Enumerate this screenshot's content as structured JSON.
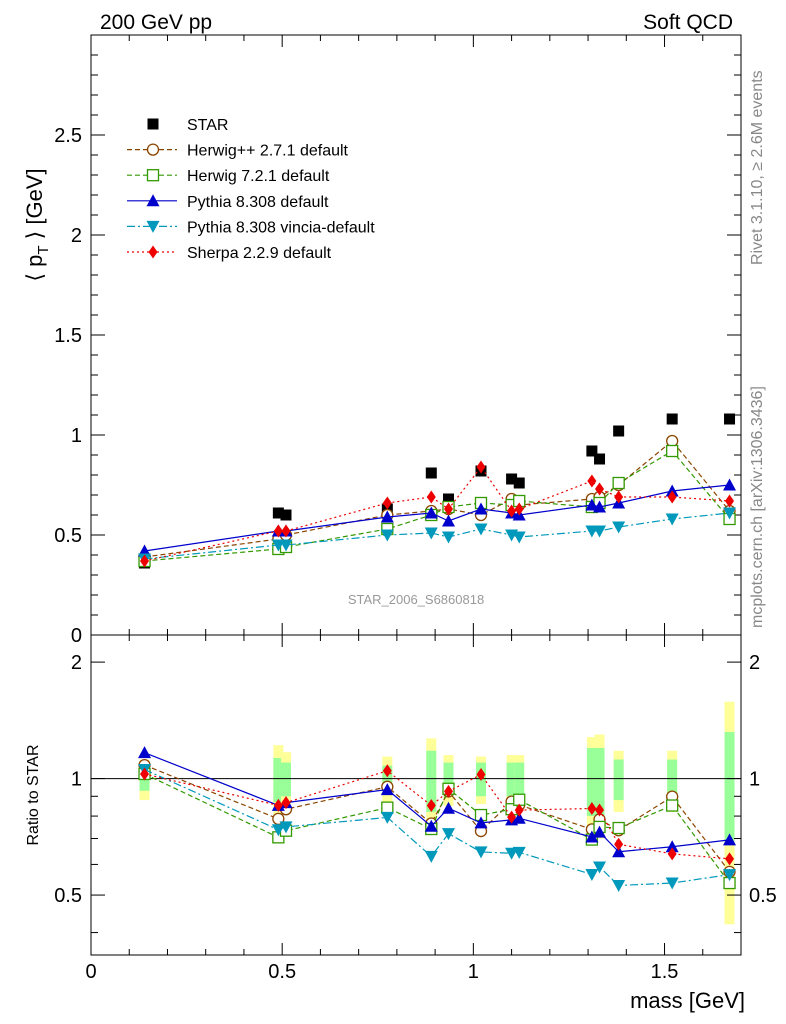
{
  "header": {
    "left_label": "200 GeV pp",
    "right_label": "Soft QCD",
    "side_top": "Rivet 3.1.10, ≥ 2.6M events",
    "side_bottom": "mcplots.cern.ch [arXiv:1306.3436]",
    "watermark": "STAR_2006_S6860818"
  },
  "chart_data": {
    "type": "line",
    "xlabel": "mass [GeV]",
    "ylabel": "⟨ p_T ⟩ [GeV]",
    "ratio_ylabel": "Ratio to STAR",
    "xlim": [
      0,
      1.7
    ],
    "ylim": [
      0,
      3.0
    ],
    "ratio_ylim": [
      0.35,
      2.35
    ],
    "x_ticks": [
      "0",
      "0.5",
      "1",
      "1.5"
    ],
    "x_tick_values": [
      0,
      0.5,
      1,
      1.5
    ],
    "y_ticks": [
      "0",
      "0.5",
      "1",
      "1.5",
      "2",
      "2.5"
    ],
    "y_tick_values": [
      0,
      0.5,
      1,
      1.5,
      2,
      2.5
    ],
    "ratio_ticks": [
      "0.5",
      "1",
      "2"
    ],
    "ratio_tick_values": [
      0.5,
      1,
      2
    ],
    "legend_position": "top-left",
    "data_points": {
      "x": [
        0.14,
        0.49,
        0.51,
        0.775,
        0.89,
        0.935,
        1.02,
        1.1,
        1.12,
        1.31,
        1.33,
        1.38,
        1.52,
        1.67
      ],
      "y": [
        0.36,
        0.61,
        0.6,
        0.63,
        0.81,
        0.68,
        0.82,
        0.78,
        0.76,
        0.92,
        0.88,
        1.02,
        1.08,
        1.08
      ],
      "ratio_band_inner": [
        0.07,
        0.13,
        0.1,
        0.08,
        0.18,
        0.1,
        0.1,
        0.1,
        0.1,
        0.2,
        0.2,
        0.12,
        0.12,
        0.32
      ],
      "ratio_band_outer": [
        0.12,
        0.22,
        0.17,
        0.14,
        0.27,
        0.15,
        0.14,
        0.15,
        0.15,
        0.28,
        0.3,
        0.18,
        0.18,
        0.58
      ]
    },
    "series": [
      {
        "name": "STAR",
        "color": "#000000",
        "marker": "square",
        "line": "none",
        "y": [
          0.36,
          0.61,
          0.6,
          0.63,
          0.81,
          0.68,
          0.82,
          0.78,
          0.76,
          0.92,
          0.88,
          1.02,
          1.08,
          1.08
        ]
      },
      {
        "name": "Herwig++ 2.7.1 default",
        "color": "#8b4500",
        "marker": "circle-open",
        "line": "dashed",
        "y": [
          0.39,
          0.48,
          0.5,
          0.6,
          0.62,
          0.63,
          0.6,
          0.68,
          0.65,
          0.68,
          0.69,
          0.75,
          0.97,
          0.62
        ]
      },
      {
        "name": "Herwig 7.2.1 default",
        "color": "#339900",
        "marker": "square-open",
        "line": "dashed",
        "y": [
          0.37,
          0.43,
          0.44,
          0.53,
          0.6,
          0.64,
          0.66,
          0.65,
          0.67,
          0.64,
          0.66,
          0.76,
          0.92,
          0.58
        ]
      },
      {
        "name": "Pythia 8.308 default",
        "color": "#0000cc",
        "marker": "triangle-up",
        "line": "solid",
        "y": [
          0.42,
          0.52,
          0.52,
          0.59,
          0.61,
          0.57,
          0.63,
          0.61,
          0.6,
          0.65,
          0.64,
          0.66,
          0.72,
          0.75
        ]
      },
      {
        "name": "Pythia 8.308 vincia-default",
        "color": "#0099bb",
        "marker": "triangle-down",
        "line": "dashdot",
        "y": [
          0.38,
          0.45,
          0.45,
          0.5,
          0.51,
          0.49,
          0.53,
          0.5,
          0.49,
          0.52,
          0.52,
          0.54,
          0.58,
          0.61
        ]
      },
      {
        "name": "Sherpa 2.2.9 default",
        "color": "#ee0000",
        "marker": "diamond",
        "line": "dotted",
        "y": [
          0.37,
          0.52,
          0.52,
          0.66,
          0.69,
          0.63,
          0.84,
          0.62,
          0.63,
          0.77,
          0.73,
          0.69,
          0.69,
          0.67
        ]
      }
    ]
  }
}
